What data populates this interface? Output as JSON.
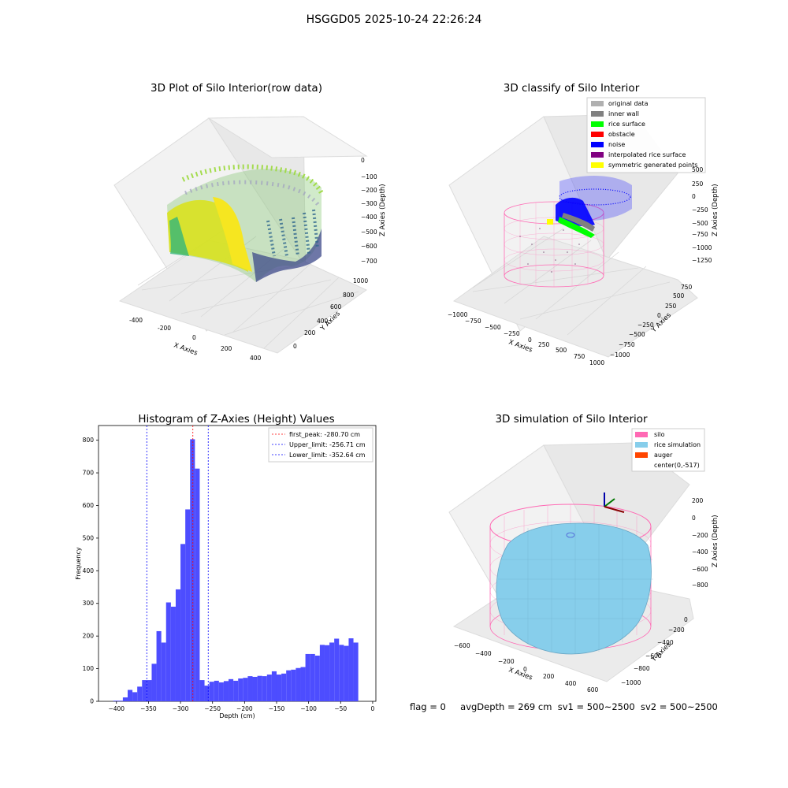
{
  "suptitle": "HSGGD05 2025-10-24 22:26:24",
  "panels": {
    "p1": {
      "title": "3D Plot of Silo Interior(row data)",
      "x_label": "X Axies",
      "y_label": "Y Axies",
      "z_label": "Z Axies (Depth)",
      "x_ticks": [
        "-400",
        "-200",
        "0",
        "200",
        "400"
      ],
      "y_ticks": [
        "0",
        "200",
        "400",
        "600",
        "800",
        "1000"
      ],
      "z_ticks": [
        "0",
        "−100",
        "−200",
        "−300",
        "−400",
        "−500",
        "−600",
        "−700"
      ]
    },
    "p2": {
      "title": "3D classify of Silo Interior",
      "x_label": "X Axies",
      "y_label": "Y Axies",
      "z_label": "Z Axies (Depth)",
      "x_ticks": [
        "−1000",
        "−750",
        "−500",
        "−250",
        "0",
        "250",
        "500",
        "750",
        "1000"
      ],
      "y_ticks": [
        "−1000",
        "−750",
        "−500",
        "−250",
        "0",
        "250",
        "500",
        "750"
      ],
      "z_ticks": [
        "500",
        "250",
        "0",
        "−250",
        "−500",
        "−750",
        "−1000",
        "−1250"
      ],
      "legend": [
        {
          "label": "original data",
          "color": "#b0b0b0"
        },
        {
          "label": "inner wall",
          "color": "#808080"
        },
        {
          "label": "rice surface",
          "color": "#00ff00"
        },
        {
          "label": "obstacle",
          "color": "#ff0000"
        },
        {
          "label": "noise",
          "color": "#0000ff"
        },
        {
          "label": "interpolated rice surface",
          "color": "#800080"
        },
        {
          "label": "symmetric generated points",
          "color": "#ffff00"
        }
      ]
    },
    "p4": {
      "title": "3D simulation of Silo Interior",
      "x_label": "X Axies",
      "y_label": "Y Axies",
      "z_label": "Z Axies (Depth)",
      "x_ticks": [
        "−600",
        "−400",
        "−200",
        "0",
        "200",
        "400",
        "600"
      ],
      "y_ticks": [
        "−1000",
        "−800",
        "−600",
        "−400",
        "−200",
        "0"
      ],
      "z_ticks": [
        "200",
        "0",
        "−200",
        "−400",
        "−600",
        "−800"
      ],
      "legend": [
        {
          "label": "silo",
          "color": "#ff69b4"
        },
        {
          "label": "rice simulation",
          "color": "#87ceeb"
        },
        {
          "label": "auger",
          "color": "#ff4500"
        },
        {
          "label": "center(0,-517)",
          "color": "#ffffff"
        }
      ]
    }
  },
  "status": {
    "flag": "flag = 0",
    "avg": "avgDepth = 269 cm",
    "sv1": "sv1 = 500~2500",
    "sv2": "sv2 = 500~2500"
  },
  "chart_data": {
    "type": "bar",
    "title": "Histogram of Z-Axies (Height) Values",
    "xlabel": "Depth (cm)",
    "ylabel": "Frequency",
    "xlim": [
      -428,
      5
    ],
    "ylim": [
      0,
      845
    ],
    "x_ticks": [
      -400,
      -350,
      -300,
      -250,
      -200,
      -150,
      -100,
      -50,
      0
    ],
    "y_ticks": [
      0,
      100,
      200,
      300,
      400,
      500,
      600,
      700,
      800
    ],
    "bin_width": 7.5,
    "bin_start": -405,
    "values": [
      2,
      2,
      12,
      35,
      28,
      45,
      65,
      65,
      115,
      215,
      180,
      303,
      290,
      343,
      482,
      588,
      803,
      713,
      65,
      48,
      60,
      63,
      58,
      62,
      68,
      63,
      70,
      72,
      77,
      75,
      78,
      77,
      82,
      92,
      82,
      85,
      95,
      97,
      102,
      105,
      145,
      145,
      140,
      173,
      172,
      180,
      192,
      173,
      170,
      193,
      180
    ],
    "bar_color": "#4d4dff",
    "vlines": [
      {
        "label": "first_peak: -280.70 cm",
        "x": -280.7,
        "color": "#ff0000"
      },
      {
        "label": "Upper_limit: -256.71 cm",
        "x": -256.71,
        "color": "#0000ff"
      },
      {
        "label": "Lower_limit: -352.64 cm",
        "x": -352.64,
        "color": "#0000ff"
      }
    ],
    "legend_position": "top-right"
  }
}
